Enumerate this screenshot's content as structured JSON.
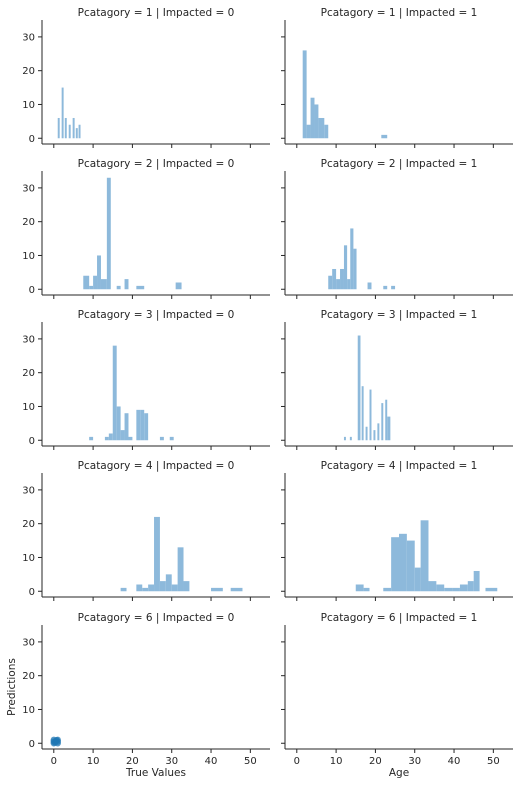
{
  "chart_data": {
    "type": "bar",
    "xlabel_left": "True Values",
    "xlabel_right": "Age",
    "ylabel": "Predictions",
    "xlim": [
      -3,
      55
    ],
    "ylim": [
      -1.7,
      35
    ],
    "xticks": [
      0,
      10,
      20,
      30,
      40,
      50
    ],
    "yticks": [
      0,
      10,
      20,
      30
    ],
    "bar_color": "#8db9db",
    "point_color": "#1f77b4",
    "panels": [
      {
        "row": 0,
        "col": 0,
        "title": "Pcatagory = 1 | Impacted = 0",
        "bars": [
          [
            1.0,
            1.5,
            6
          ],
          [
            2.0,
            2.5,
            15
          ],
          [
            2.8,
            3.3,
            6
          ],
          [
            3.8,
            4.3,
            4
          ],
          [
            4.8,
            5.3,
            6
          ],
          [
            5.6,
            6.1,
            3
          ],
          [
            6.3,
            6.8,
            4
          ]
        ]
      },
      {
        "row": 0,
        "col": 1,
        "title": "Pcatagory = 1 | Impacted = 1",
        "bars": [
          [
            1.5,
            2.5,
            26
          ],
          [
            2.5,
            3.5,
            4
          ],
          [
            3.5,
            4.5,
            12
          ],
          [
            4.5,
            5.5,
            10
          ],
          [
            5.5,
            7.0,
            6
          ],
          [
            7.0,
            8.0,
            4
          ],
          [
            21.5,
            23.0,
            1
          ]
        ]
      },
      {
        "row": 1,
        "col": 0,
        "title": "Pcatagory = 2 | Impacted = 0",
        "bars": [
          [
            7.5,
            9,
            4
          ],
          [
            9,
            10,
            1
          ],
          [
            10,
            11,
            4
          ],
          [
            11,
            12,
            10
          ],
          [
            12,
            13.5,
            3
          ],
          [
            13.5,
            14.5,
            33
          ],
          [
            16,
            17,
            1
          ],
          [
            18,
            19,
            3
          ],
          [
            21,
            23,
            1
          ],
          [
            31,
            32.5,
            2
          ]
        ]
      },
      {
        "row": 1,
        "col": 1,
        "title": "Pcatagory = 2 | Impacted = 1",
        "bars": [
          [
            8,
            9,
            4
          ],
          [
            9,
            10,
            6
          ],
          [
            10,
            11,
            3
          ],
          [
            11,
            12,
            6
          ],
          [
            12,
            12.8,
            13
          ],
          [
            12.8,
            13.6,
            3
          ],
          [
            13.6,
            14.4,
            18
          ],
          [
            14.4,
            15.2,
            12
          ],
          [
            18,
            19,
            2
          ],
          [
            22,
            23,
            1
          ],
          [
            24,
            25,
            1
          ]
        ]
      },
      {
        "row": 2,
        "col": 0,
        "title": "Pcatagory = 3 | Impacted = 0",
        "bars": [
          [
            9,
            10,
            1
          ],
          [
            13,
            14,
            1
          ],
          [
            14,
            15,
            2
          ],
          [
            15,
            16,
            28
          ],
          [
            16,
            17,
            10
          ],
          [
            17,
            18,
            3
          ],
          [
            18,
            19,
            8
          ],
          [
            19,
            20,
            1
          ],
          [
            21,
            22,
            9
          ],
          [
            22,
            23,
            9
          ],
          [
            23,
            24,
            8
          ],
          [
            27,
            28,
            1
          ],
          [
            29.5,
            30.5,
            1
          ]
        ]
      },
      {
        "row": 2,
        "col": 1,
        "title": "Pcatagory = 3 | Impacted = 1",
        "bars": [
          [
            12,
            12.5,
            1
          ],
          [
            13.5,
            14,
            1
          ],
          [
            15.5,
            16.2,
            31
          ],
          [
            16.5,
            17,
            16
          ],
          [
            17.5,
            18,
            4
          ],
          [
            18.5,
            19,
            15
          ],
          [
            19.5,
            20,
            3
          ],
          [
            20.5,
            21,
            5
          ],
          [
            21.5,
            22,
            11
          ],
          [
            22.5,
            23,
            12
          ],
          [
            23,
            23.8,
            7
          ]
        ]
      },
      {
        "row": 3,
        "col": 0,
        "title": "Pcatagory = 4 | Impacted = 0",
        "bars": [
          [
            17,
            18.5,
            1
          ],
          [
            21,
            22.5,
            2
          ],
          [
            22.5,
            24,
            1
          ],
          [
            24,
            25.5,
            2
          ],
          [
            25.5,
            27,
            22
          ],
          [
            27,
            28.5,
            3
          ],
          [
            28.5,
            30,
            5
          ],
          [
            30,
            31.5,
            2
          ],
          [
            31.5,
            33,
            13
          ],
          [
            33,
            34.5,
            3
          ],
          [
            40,
            43,
            1
          ],
          [
            45,
            48,
            1
          ]
        ]
      },
      {
        "row": 3,
        "col": 1,
        "title": "Pcatagory = 4 | Impacted = 1",
        "bars": [
          [
            15,
            17,
            2
          ],
          [
            17,
            18.5,
            1
          ],
          [
            22,
            24,
            1
          ],
          [
            24,
            26,
            16
          ],
          [
            26,
            28,
            17
          ],
          [
            28,
            30,
            15
          ],
          [
            30,
            31.5,
            7
          ],
          [
            31.5,
            33.5,
            21
          ],
          [
            33.5,
            35.5,
            3
          ],
          [
            35.5,
            37.5,
            2
          ],
          [
            37.5,
            39.5,
            1
          ],
          [
            39.5,
            41.5,
            1
          ],
          [
            41.5,
            43.5,
            2
          ],
          [
            43.5,
            45,
            3
          ],
          [
            45,
            46.5,
            6
          ],
          [
            48,
            51,
            1
          ]
        ]
      },
      {
        "row": 4,
        "col": 0,
        "title": "Pcatagory = 6 | Impacted = 0",
        "points": [
          [
            0,
            0
          ],
          [
            0,
            1
          ],
          [
            1,
            0
          ],
          [
            1,
            1
          ],
          [
            0.5,
            0.6
          ],
          [
            0,
            0.5
          ],
          [
            1,
            0.5
          ],
          [
            0.3,
            0.2
          ],
          [
            0.7,
            0.9
          ]
        ]
      },
      {
        "row": 4,
        "col": 1,
        "title": "Pcatagory = 6 | Impacted = 1",
        "bars": []
      }
    ]
  }
}
